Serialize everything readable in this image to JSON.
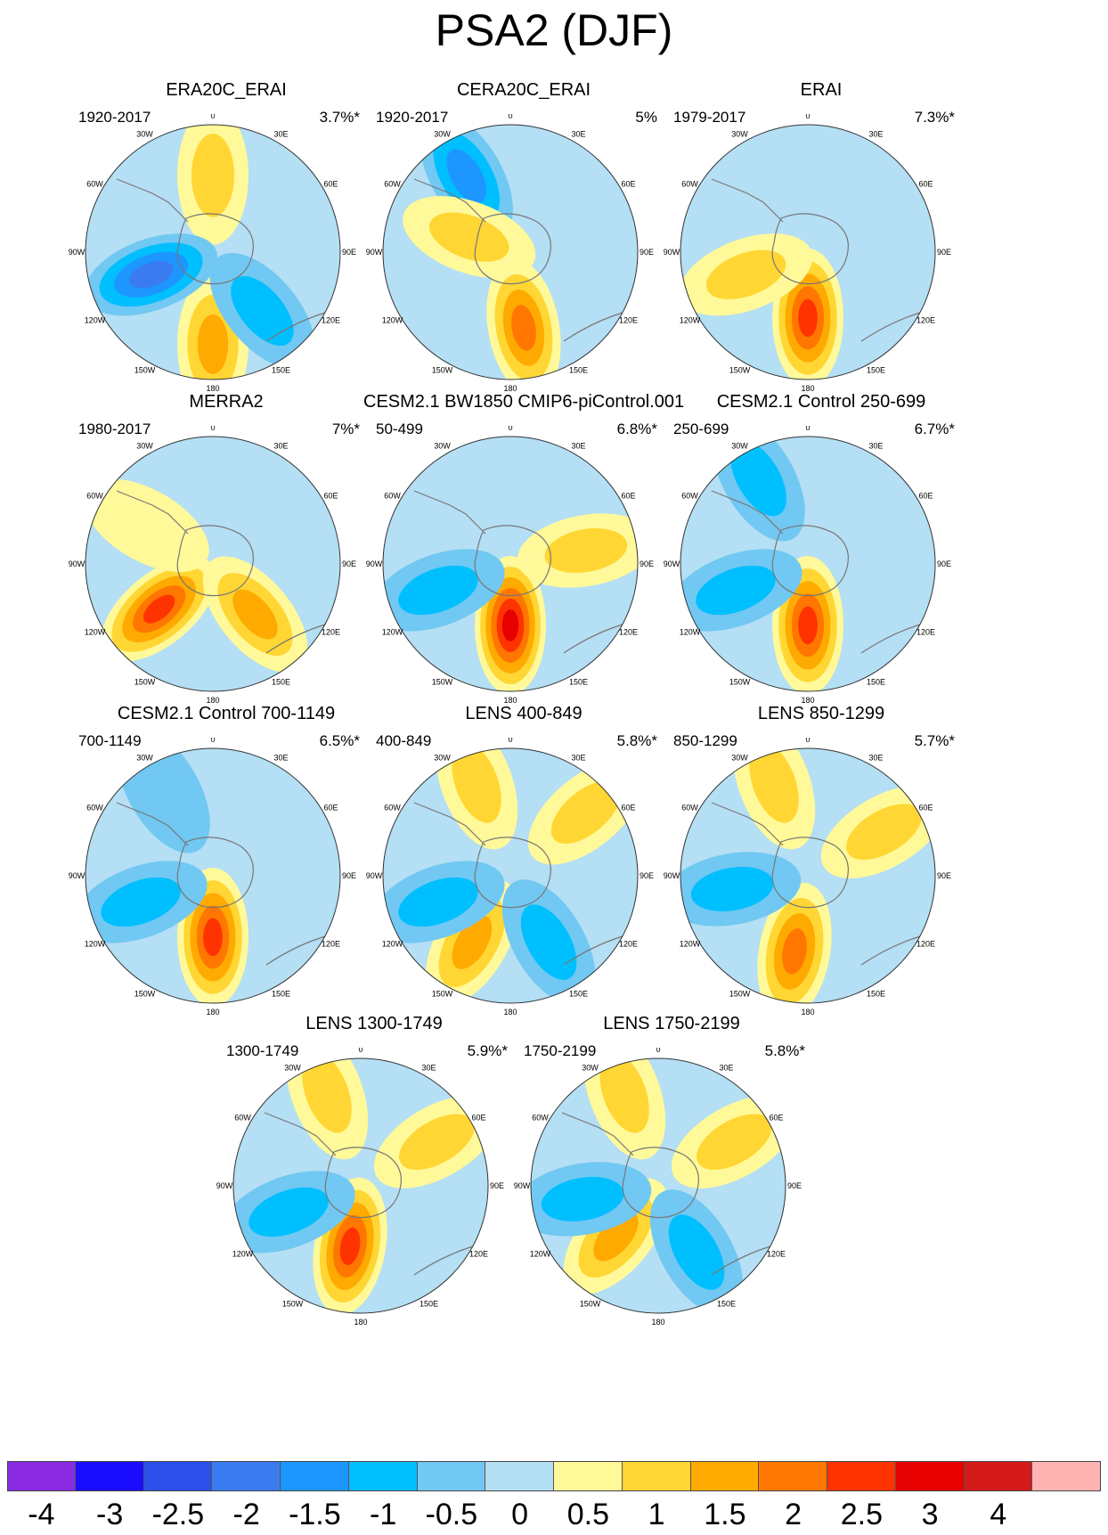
{
  "page_title": "PSA2 (DJF)",
  "chart_data": {
    "type": "polar-stereographic contour map panels (Southern Hemisphere)",
    "title": "PSA2 (DJF)",
    "longitude_labels": [
      "0",
      "30E",
      "60E",
      "90E",
      "120E",
      "150E",
      "180",
      "150W",
      "120W",
      "90W",
      "60W",
      "30W"
    ],
    "panels": [
      {
        "title": "ERA20C_ERAI",
        "period": "1920-2017",
        "variance": "3.7%*",
        "features": [
          {
            "lon": 180,
            "lat": -48,
            "value": 1.5
          },
          {
            "lon": 0,
            "lat": -55,
            "value": 1.0
          },
          {
            "lon": 250,
            "lat": -60,
            "value": -2.5
          },
          {
            "lon": 140,
            "lat": -55,
            "value": -1.5
          }
        ]
      },
      {
        "title": "CERA20C_ERAI",
        "period": "1920-2017",
        "variance": "5%",
        "features": [
          {
            "lon": 330,
            "lat": -50,
            "value": -2.0
          },
          {
            "lon": 290,
            "lat": -70,
            "value": 1.0
          },
          {
            "lon": 170,
            "lat": -55,
            "value": 2.0
          }
        ]
      },
      {
        "title": "ERAI",
        "period": "1979-2017",
        "variance": "7.3%*",
        "features": [
          {
            "lon": 180,
            "lat": -60,
            "value": 2.5
          },
          {
            "lon": 250,
            "lat": -60,
            "value": 1.0
          },
          {
            "lon": 200,
            "lat": -70,
            "value": -0.5
          }
        ]
      },
      {
        "title": "MERRA2",
        "period": "1980-2017",
        "variance": "7%*",
        "features": [
          {
            "lon": 230,
            "lat": -58,
            "value": 2.5
          },
          {
            "lon": 140,
            "lat": -60,
            "value": 1.5
          },
          {
            "lon": 300,
            "lat": -55,
            "value": 0.5
          }
        ]
      },
      {
        "title": "CESM2.1 BW1850 CMIP6-piControl.001",
        "period": "50-499",
        "variance": "6.8%*",
        "features": [
          {
            "lon": 180,
            "lat": -62,
            "value": 3.0
          },
          {
            "lon": 250,
            "lat": -55,
            "value": -1.5
          },
          {
            "lon": 80,
            "lat": -55,
            "value": 1.0
          }
        ]
      },
      {
        "title": "CESM2.1 Control 250-699",
        "period": "250-699",
        "variance": "6.7%*",
        "features": [
          {
            "lon": 180,
            "lat": -62,
            "value": 2.5
          },
          {
            "lon": 250,
            "lat": -55,
            "value": -1.5
          },
          {
            "lon": 330,
            "lat": -45,
            "value": -1.5
          }
        ]
      },
      {
        "title": "CESM2.1 Control 700-1149",
        "period": "700-1149",
        "variance": "6.5%*",
        "features": [
          {
            "lon": 180,
            "lat": -62,
            "value": 2.5
          },
          {
            "lon": 250,
            "lat": -55,
            "value": -1.5
          },
          {
            "lon": 330,
            "lat": -45,
            "value": -1.0
          }
        ]
      },
      {
        "title": "LENS 400-849",
        "period": "400-849",
        "variance": "5.8%*",
        "features": [
          {
            "lon": 210,
            "lat": -55,
            "value": 1.5
          },
          {
            "lon": 250,
            "lat": -55,
            "value": -1.5
          },
          {
            "lon": 150,
            "lat": -55,
            "value": -1.5
          },
          {
            "lon": 340,
            "lat": -45,
            "value": 1.0
          },
          {
            "lon": 50,
            "lat": -45,
            "value": 1.0
          }
        ]
      },
      {
        "title": "LENS 850-1299",
        "period": "850-1299",
        "variance": "5.7%*",
        "features": [
          {
            "lon": 190,
            "lat": -55,
            "value": 2.0
          },
          {
            "lon": 260,
            "lat": -55,
            "value": -1.5
          },
          {
            "lon": 340,
            "lat": -45,
            "value": 1.0
          },
          {
            "lon": 60,
            "lat": -50,
            "value": 1.0
          }
        ]
      },
      {
        "title": "LENS 1300-1749",
        "period": "1300-1749",
        "variance": "5.9%*",
        "features": [
          {
            "lon": 190,
            "lat": -62,
            "value": 2.5
          },
          {
            "lon": 250,
            "lat": -55,
            "value": -1.5
          },
          {
            "lon": 340,
            "lat": -45,
            "value": 1.0
          },
          {
            "lon": 60,
            "lat": -50,
            "value": 1.0
          }
        ]
      },
      {
        "title": "LENS 1750-2199",
        "period": "1750-2199",
        "variance": "5.8%*",
        "features": [
          {
            "lon": 220,
            "lat": -60,
            "value": 1.5
          },
          {
            "lon": 260,
            "lat": -55,
            "value": -1.5
          },
          {
            "lon": 150,
            "lat": -55,
            "value": -1.5
          },
          {
            "lon": 340,
            "lat": -45,
            "value": 1.0
          },
          {
            "lon": 60,
            "lat": -50,
            "value": 1.0
          }
        ]
      }
    ],
    "colorbar": {
      "labels": [
        "-4",
        "-3",
        "-2.5",
        "-2",
        "-1.5",
        "-1",
        "-0.5",
        "0",
        "0.5",
        "1",
        "1.5",
        "2",
        "2.5",
        "3",
        "4"
      ],
      "colors": [
        "#8a2be2",
        "#1a0cff",
        "#2b4fe8",
        "#3a7cf0",
        "#1e96ff",
        "#00bfff",
        "#71c8f2",
        "#b4dff4",
        "#fff99a",
        "#ffd633",
        "#ffaa00",
        "#ff7700",
        "#ff3300",
        "#e60000",
        "#d41a1a",
        "#ffb3b3"
      ]
    }
  }
}
